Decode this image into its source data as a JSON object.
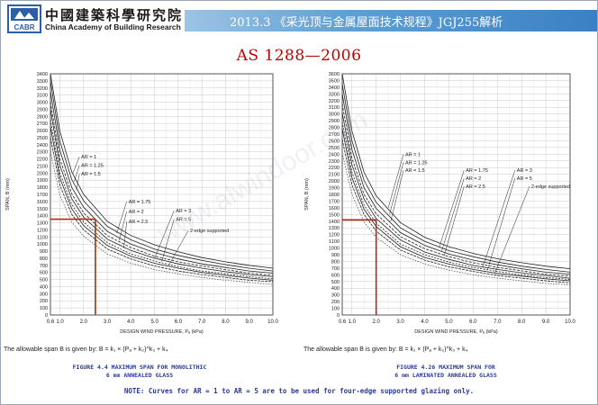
{
  "header": {
    "org_cn": "中國建築科學研究院",
    "org_en": "China Academy of Building Research",
    "logo_text": "CABR",
    "banner": "2013.3 《采光顶与金属屋面技术规程》JGJ255解析",
    "banner_color": "#3a80c4"
  },
  "slide_title": "AS 1288—2006",
  "watermark": "www.alwindoor.com",
  "chart_data": [
    {
      "type": "line",
      "ylabel": "SPAN, B (mm)",
      "xlabel": "DESIGN WIND PRESSURE, Pₐ (kPa)",
      "xlim": [
        0.6,
        10.0
      ],
      "ylim": [
        0,
        3400
      ],
      "xticks": [
        "0.6",
        "1.0",
        "2.0",
        "3.0",
        "4.0",
        "5.0",
        "6.0",
        "7.0",
        "8.0",
        "9.0",
        "10.0"
      ],
      "yticks": [
        "0",
        "100",
        "200",
        "300",
        "400",
        "500",
        "600",
        "700",
        "800",
        "900",
        "1000",
        "1100",
        "1200",
        "1300",
        "1400",
        "1500",
        "1600",
        "1700",
        "1800",
        "1900",
        "2000",
        "2100",
        "2200",
        "2300",
        "2400",
        "2500",
        "2600",
        "2700",
        "2800",
        "2900",
        "3000",
        "3100",
        "3200",
        "3300",
        "3400"
      ],
      "series": [
        {
          "name": "AR = 1",
          "x": [
            0.6,
            1,
            1.5,
            2,
            3,
            4,
            5,
            6,
            7,
            8,
            9,
            10
          ],
          "y": [
            3400,
            2590,
            2020,
            1700,
            1320,
            1120,
            990,
            890,
            810,
            750,
            700,
            660
          ]
        },
        {
          "name": "AR = 1.25",
          "x": [
            0.6,
            1,
            1.5,
            2,
            3,
            4,
            5,
            6,
            7,
            8,
            9,
            10
          ],
          "y": [
            3300,
            2450,
            1910,
            1610,
            1250,
            1060,
            930,
            840,
            770,
            710,
            660,
            620
          ]
        },
        {
          "name": "AR = 1.5",
          "x": [
            0.6,
            1,
            1.5,
            2,
            3,
            4,
            5,
            6,
            7,
            8,
            9,
            10
          ],
          "y": [
            3150,
            2320,
            1800,
            1520,
            1180,
            1000,
            880,
            790,
            720,
            670,
            620,
            590
          ]
        },
        {
          "name": "AR = 1.75",
          "x": [
            0.6,
            1,
            1.5,
            2,
            3,
            4,
            5,
            6,
            7,
            8,
            9,
            10
          ],
          "y": [
            3000,
            2200,
            1710,
            1440,
            1120,
            950,
            830,
            750,
            690,
            640,
            590,
            560
          ]
        },
        {
          "name": "AR = 2",
          "x": [
            0.6,
            1,
            1.5,
            2,
            3,
            4,
            5,
            6,
            7,
            8,
            9,
            10
          ],
          "y": [
            2900,
            2110,
            1640,
            1380,
            1070,
            910,
            800,
            720,
            660,
            610,
            570,
            540
          ]
        },
        {
          "name": "AR = 2.5",
          "x": [
            0.6,
            1,
            1.5,
            2,
            3,
            4,
            5,
            6,
            7,
            8,
            9,
            10
          ],
          "y": [
            2750,
            2000,
            1560,
            1310,
            1020,
            860,
            760,
            680,
            620,
            580,
            540,
            510
          ]
        },
        {
          "name": "AR = 3",
          "x": [
            0.6,
            1,
            1.5,
            2,
            3,
            4,
            5,
            6,
            7,
            8,
            9,
            10
          ],
          "y": [
            2650,
            1930,
            1500,
            1260,
            980,
            830,
            730,
            660,
            600,
            560,
            520,
            490
          ]
        },
        {
          "name": "AR = 5",
          "x": [
            0.6,
            1,
            1.5,
            2,
            3,
            4,
            5,
            6,
            7,
            8,
            9,
            10
          ],
          "y": [
            2500,
            1830,
            1420,
            1200,
            930,
            790,
            690,
            620,
            570,
            530,
            490,
            470
          ]
        },
        {
          "name": "2-edge supported",
          "x": [
            0.6,
            1,
            1.5,
            2,
            3,
            4,
            5,
            6,
            7,
            8,
            9,
            10
          ],
          "y": [
            2300,
            1690,
            1310,
            1110,
            860,
            730,
            640,
            580,
            530,
            490,
            460,
            430
          ]
        }
      ],
      "annotation": {
        "pressure": 2.5,
        "span": 1350,
        "color": "#b02a10"
      },
      "formula": "The allowable span B is given by:  B = k₁ × (Pₐ + k₂)^k₃ + k₄",
      "caption": [
        "FIGURE 4.4 MAXIMUM SPAN FOR MONOLITHIC",
        "6 mm ANNEALED GLASS"
      ]
    },
    {
      "type": "line",
      "ylabel": "SPAN, B (mm)",
      "xlabel": "DESIGN WIND PRESSURE, Pₐ (kPa)",
      "xlim": [
        0.6,
        10.0
      ],
      "ylim": [
        0,
        3600
      ],
      "xticks": [
        "0.6",
        "1.0",
        "2.0",
        "3.0",
        "4.0",
        "5.0",
        "6.0",
        "7.0",
        "8.0",
        "9.0",
        "10.0"
      ],
      "yticks": [
        "0",
        "100",
        "200",
        "300",
        "400",
        "500",
        "600",
        "700",
        "800",
        "900",
        "1000",
        "1100",
        "1200",
        "1300",
        "1400",
        "1500",
        "1600",
        "1700",
        "1800",
        "1900",
        "2000",
        "2100",
        "2200",
        "2300",
        "2400",
        "2500",
        "2600",
        "2700",
        "2800",
        "2900",
        "3000",
        "3100",
        "3200",
        "3300",
        "3400",
        "3500",
        "3600"
      ],
      "series": [
        {
          "name": "AR = 1",
          "x": [
            0.6,
            1,
            1.5,
            2,
            3,
            4,
            5,
            6,
            7,
            8,
            9,
            10
          ],
          "y": [
            3600,
            2750,
            2130,
            1780,
            1380,
            1160,
            1020,
            920,
            840,
            780,
            730,
            690
          ]
        },
        {
          "name": "AR = 1.25",
          "x": [
            0.6,
            1,
            1.5,
            2,
            3,
            4,
            5,
            6,
            7,
            8,
            9,
            10
          ],
          "y": [
            3450,
            2600,
            2010,
            1680,
            1300,
            1100,
            960,
            870,
            790,
            730,
            680,
            640
          ]
        },
        {
          "name": "AR = 1.5",
          "x": [
            0.6,
            1,
            1.5,
            2,
            3,
            4,
            5,
            6,
            7,
            8,
            9,
            10
          ],
          "y": [
            3300,
            2470,
            1900,
            1590,
            1230,
            1040,
            910,
            820,
            750,
            690,
            640,
            610
          ]
        },
        {
          "name": "AR = 1.75",
          "x": [
            0.6,
            1,
            1.5,
            2,
            3,
            4,
            5,
            6,
            7,
            8,
            9,
            10
          ],
          "y": [
            3150,
            2340,
            1800,
            1510,
            1170,
            990,
            870,
            780,
            710,
            660,
            610,
            580
          ]
        },
        {
          "name": "AR = 2",
          "x": [
            0.6,
            1,
            1.5,
            2,
            3,
            4,
            5,
            6,
            7,
            8,
            9,
            10
          ],
          "y": [
            3020,
            2240,
            1730,
            1440,
            1120,
            940,
            830,
            740,
            680,
            630,
            590,
            550
          ]
        },
        {
          "name": "AR = 2.5",
          "x": [
            0.6,
            1,
            1.5,
            2,
            3,
            4,
            5,
            6,
            7,
            8,
            9,
            10
          ],
          "y": [
            2880,
            2130,
            1640,
            1370,
            1060,
            900,
            790,
            710,
            650,
            600,
            560,
            530
          ]
        },
        {
          "name": "AR = 3",
          "x": [
            0.6,
            1,
            1.5,
            2,
            3,
            4,
            5,
            6,
            7,
            8,
            9,
            10
          ],
          "y": [
            2780,
            2050,
            1580,
            1320,
            1020,
            860,
            760,
            680,
            620,
            580,
            540,
            510
          ]
        },
        {
          "name": "AR = 5",
          "x": [
            0.6,
            1,
            1.5,
            2,
            3,
            4,
            5,
            6,
            7,
            8,
            9,
            10
          ],
          "y": [
            2620,
            1940,
            1500,
            1250,
            970,
            820,
            720,
            650,
            590,
            550,
            510,
            480
          ]
        },
        {
          "name": "2-edge supported",
          "x": [
            0.6,
            1,
            1.5,
            2,
            3,
            4,
            5,
            6,
            7,
            8,
            9,
            10
          ],
          "y": [
            2420,
            1800,
            1390,
            1160,
            900,
            760,
            670,
            600,
            550,
            510,
            470,
            450
          ]
        }
      ],
      "annotation": {
        "pressure": 2.0,
        "span": 1420,
        "color": "#b02a10"
      },
      "formula": "The allowable span B is given by:  B = k₁ × (Pₐ + k₂)^k₃ + k₄",
      "caption": [
        "FIGURE 4.26 MAXIMUM SPAN FOR",
        "6 mm LAMINATED ANNEALED GLASS"
      ]
    }
  ],
  "note": "NOTE: Curves for AR = 1 to AR = 5 are to be used for four-edge supported glazing only."
}
